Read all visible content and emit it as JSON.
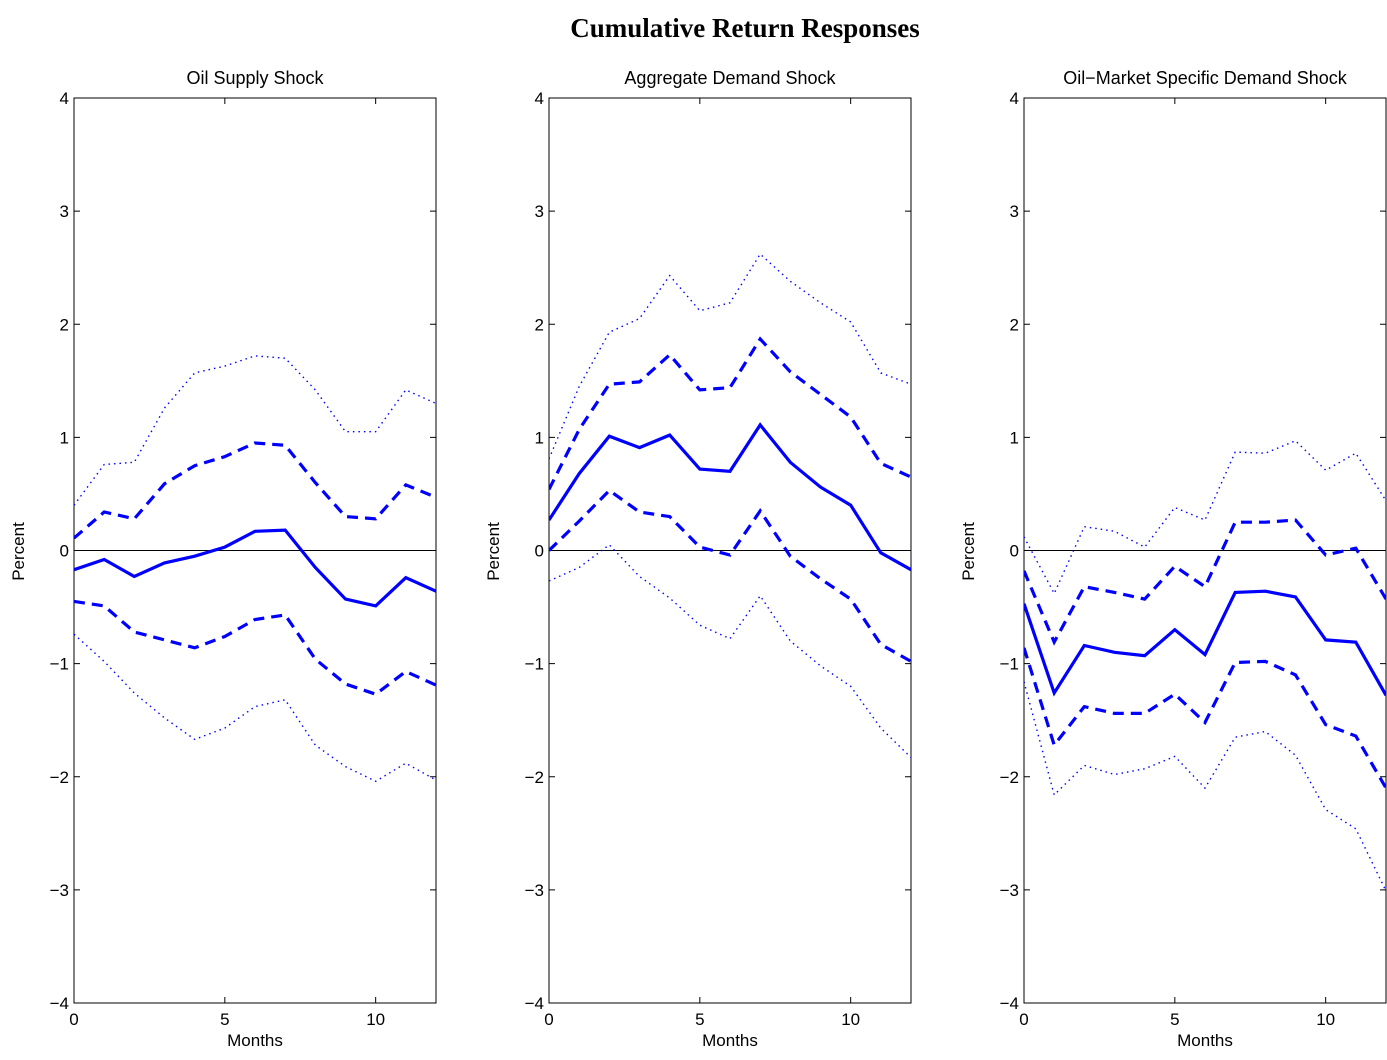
{
  "figure": {
    "title": "Cumulative Return Responses"
  },
  "colors": {
    "series": "#0000ff",
    "zero_line": "#000000",
    "axes": "#000000"
  },
  "chart_data": [
    {
      "type": "line",
      "title": "Oil Supply Shock",
      "xlabel": "Months",
      "ylabel": "Percent",
      "xlim": [
        0,
        12
      ],
      "ylim": [
        -4,
        4
      ],
      "xticks": [
        0,
        5,
        10
      ],
      "yticks": [
        -4,
        -3,
        -2,
        -1,
        0,
        1,
        2,
        3,
        4
      ],
      "x": [
        0,
        1,
        2,
        3,
        4,
        5,
        6,
        7,
        8,
        9,
        10,
        11,
        12
      ],
      "series": [
        {
          "style": "solid",
          "values": [
            -0.17,
            -0.08,
            -0.23,
            -0.11,
            -0.05,
            0.03,
            0.17,
            0.18,
            -0.15,
            -0.43,
            -0.49,
            -0.24,
            -0.36
          ]
        },
        {
          "style": "dashed",
          "values": [
            0.11,
            0.34,
            0.28,
            0.59,
            0.75,
            0.83,
            0.95,
            0.93,
            0.6,
            0.3,
            0.28,
            0.58,
            0.47
          ]
        },
        {
          "style": "dashed",
          "values": [
            -0.45,
            -0.49,
            -0.72,
            -0.79,
            -0.86,
            -0.76,
            -0.61,
            -0.57,
            -0.96,
            -1.18,
            -1.27,
            -1.07,
            -1.19
          ]
        },
        {
          "style": "dotted",
          "values": [
            0.4,
            0.76,
            0.78,
            1.26,
            1.57,
            1.63,
            1.72,
            1.7,
            1.42,
            1.05,
            1.05,
            1.42,
            1.3
          ]
        },
        {
          "style": "dotted",
          "values": [
            -0.74,
            -0.98,
            -1.26,
            -1.48,
            -1.67,
            -1.57,
            -1.38,
            -1.32,
            -1.72,
            -1.91,
            -2.04,
            -1.88,
            -2.03
          ]
        }
      ]
    },
    {
      "type": "line",
      "title": "Aggregate Demand Shock",
      "xlabel": "Months",
      "ylabel": "Percent",
      "xlim": [
        0,
        12
      ],
      "ylim": [
        -4,
        4
      ],
      "xticks": [
        0,
        5,
        10
      ],
      "yticks": [
        -4,
        -3,
        -2,
        -1,
        0,
        1,
        2,
        3,
        4
      ],
      "x": [
        0,
        1,
        2,
        3,
        4,
        5,
        6,
        7,
        8,
        9,
        10,
        11,
        12
      ],
      "series": [
        {
          "style": "solid",
          "values": [
            0.27,
            0.68,
            1.01,
            0.91,
            1.02,
            0.72,
            0.7,
            1.11,
            0.78,
            0.56,
            0.4,
            -0.02,
            -0.17
          ]
        },
        {
          "style": "dashed",
          "values": [
            0.54,
            1.07,
            1.47,
            1.49,
            1.73,
            1.42,
            1.44,
            1.87,
            1.58,
            1.38,
            1.18,
            0.77,
            0.65
          ]
        },
        {
          "style": "dashed",
          "values": [
            0.0,
            0.26,
            0.53,
            0.34,
            0.3,
            0.03,
            -0.04,
            0.35,
            -0.05,
            -0.25,
            -0.43,
            -0.83,
            -0.98
          ]
        },
        {
          "style": "dotted",
          "values": [
            0.81,
            1.45,
            1.93,
            2.05,
            2.43,
            2.12,
            2.19,
            2.62,
            2.38,
            2.19,
            2.02,
            1.57,
            1.47
          ]
        },
        {
          "style": "dotted",
          "values": [
            -0.27,
            -0.15,
            0.05,
            -0.23,
            -0.42,
            -0.66,
            -0.78,
            -0.4,
            -0.8,
            -1.02,
            -1.2,
            -1.57,
            -1.83
          ]
        }
      ]
    },
    {
      "type": "line",
      "title": "Oil−Market Specific Demand Shock",
      "xlabel": "Months",
      "ylabel": "Percent",
      "xlim": [
        0,
        12
      ],
      "ylim": [
        -4,
        4
      ],
      "xticks": [
        0,
        5,
        10
      ],
      "yticks": [
        -4,
        -3,
        -2,
        -1,
        0,
        1,
        2,
        3,
        4
      ],
      "x": [
        0,
        1,
        2,
        3,
        4,
        5,
        6,
        7,
        8,
        9,
        10,
        11,
        12
      ],
      "series": [
        {
          "style": "solid",
          "values": [
            -0.47,
            -1.26,
            -0.84,
            -0.9,
            -0.93,
            -0.7,
            -0.92,
            -0.37,
            -0.36,
            -0.41,
            -0.79,
            -0.81,
            -1.28
          ]
        },
        {
          "style": "dashed",
          "values": [
            -0.18,
            -0.81,
            -0.32,
            -0.37,
            -0.43,
            -0.14,
            -0.32,
            0.25,
            0.25,
            0.27,
            -0.04,
            0.02,
            -0.43
          ]
        },
        {
          "style": "dashed",
          "values": [
            -0.86,
            -1.72,
            -1.38,
            -1.44,
            -1.44,
            -1.27,
            -1.52,
            -0.99,
            -0.98,
            -1.1,
            -1.54,
            -1.64,
            -2.1
          ]
        },
        {
          "style": "dotted",
          "values": [
            0.12,
            -0.38,
            0.21,
            0.17,
            0.03,
            0.38,
            0.27,
            0.87,
            0.86,
            0.97,
            0.71,
            0.86,
            0.44
          ]
        },
        {
          "style": "dotted",
          "values": [
            -1.16,
            -2.16,
            -1.9,
            -1.98,
            -1.93,
            -1.82,
            -2.1,
            -1.65,
            -1.6,
            -1.81,
            -2.29,
            -2.46,
            -3.01
          ]
        }
      ]
    }
  ]
}
